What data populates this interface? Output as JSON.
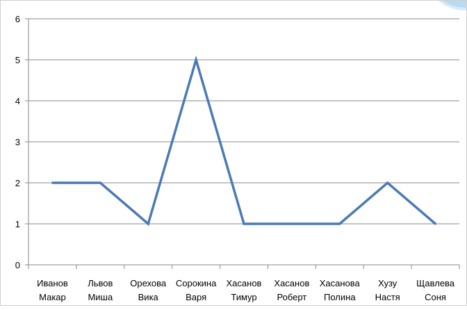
{
  "chart_data": {
    "type": "line",
    "categories": [
      [
        "Иванов",
        "Макар"
      ],
      [
        "Львов",
        "Миша"
      ],
      [
        "Орехова",
        "Вика"
      ],
      [
        "Сорокина",
        "Варя"
      ],
      [
        "Хасанов",
        "Тимур"
      ],
      [
        "Хасанов",
        "Роберт"
      ],
      [
        "Хасанова",
        "Полина"
      ],
      [
        "Хузу",
        "Настя"
      ],
      [
        "Щавлева",
        "Соня"
      ]
    ],
    "series": [
      {
        "values": [
          2,
          2,
          1,
          5,
          1,
          1,
          1,
          2,
          1
        ],
        "color": "#4a7ab7"
      }
    ],
    "ylim": [
      0,
      6
    ],
    "yticks": [
      0,
      1,
      2,
      3,
      4,
      5,
      6
    ],
    "grid": true,
    "gridColor": "#888888",
    "title": "",
    "xlabel": "",
    "ylabel": ""
  }
}
